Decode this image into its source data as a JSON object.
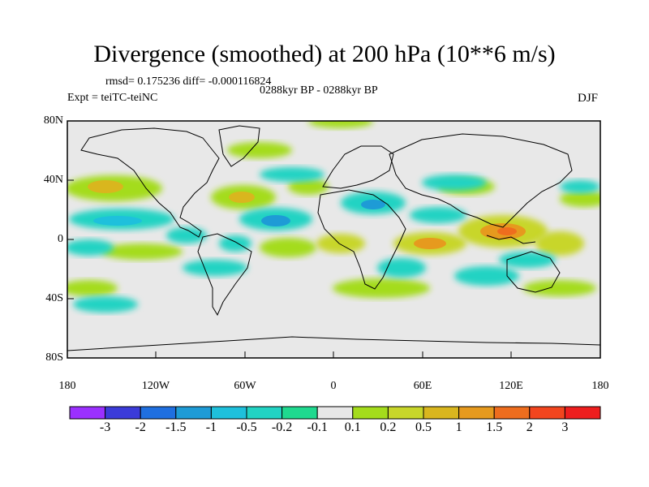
{
  "title": "Divergence (smoothed) at 200 hPa (10**6 m/s)",
  "stats": "rmsd= 0.175236 diff= -0.000116824",
  "period": "0288kyr BP - 0288kyr BP",
  "experiment": "Expt = teiTC-teiNC",
  "season": "DJF",
  "axes": {
    "y_ticks": [
      "80N",
      "40N",
      "0",
      "40S",
      "80S"
    ],
    "x_ticks": [
      "180",
      "120W",
      "60W",
      "0",
      "60E",
      "120E",
      "180"
    ]
  },
  "colorbar": {
    "colors": [
      "#9b30ff",
      "#3b3bd9",
      "#1f6fe0",
      "#1e9bd6",
      "#1ec0dc",
      "#22d3c3",
      "#1fd98f",
      "#e8e8e8",
      "#a4dc1c",
      "#c8d62a",
      "#d9b61e",
      "#e69a1e",
      "#ee6d1e",
      "#f2451e",
      "#ee1e1e"
    ],
    "labels": [
      "-3",
      "-2",
      "-1.5",
      "-1",
      "-0.5",
      "-0.2",
      "-0.1",
      "0.1",
      "0.2",
      "0.5",
      "1",
      "1.5",
      "2",
      "3"
    ]
  },
  "colors": {
    "land_fill": "#e8e8e8",
    "coast": "#000000"
  }
}
